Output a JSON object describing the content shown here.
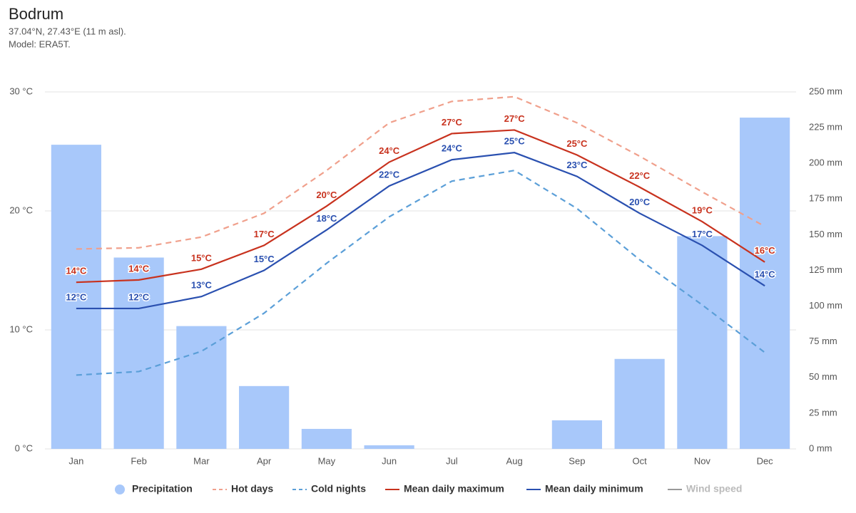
{
  "chart_data": {
    "type": "combo",
    "title": "Bodrum",
    "subtitle": [
      "37.04°N, 27.43°E (11 m asl).",
      "Model: ERA5T."
    ],
    "categories": [
      "Jan",
      "Feb",
      "Mar",
      "Apr",
      "May",
      "Jun",
      "Jul",
      "Aug",
      "Sep",
      "Oct",
      "Nov",
      "Dec"
    ],
    "ylim": [
      0,
      30
    ],
    "yticks": [
      {
        "value": 0,
        "label": "0 °C"
      },
      {
        "value": 10,
        "label": "10 °C"
      },
      {
        "value": 20,
        "label": "20 °C"
      },
      {
        "value": 30,
        "label": "30 °C"
      }
    ],
    "y2lim": [
      0,
      250
    ],
    "y2ticks": [
      {
        "value": 0,
        "label": "0 mm"
      },
      {
        "value": 25,
        "label": "25 mm"
      },
      {
        "value": 50,
        "label": "50 mm"
      },
      {
        "value": 75,
        "label": "75 mm"
      },
      {
        "value": 100,
        "label": "100 mm"
      },
      {
        "value": 125,
        "label": "125 mm"
      },
      {
        "value": 150,
        "label": "150 mm"
      },
      {
        "value": 175,
        "label": "175 mm"
      },
      {
        "value": 200,
        "label": "200 mm"
      },
      {
        "value": 225,
        "label": "225 mm"
      },
      {
        "value": 250,
        "label": "250 mm"
      }
    ],
    "grid": true,
    "legend": "bottom",
    "series": [
      {
        "name": "Precipitation",
        "type": "bar",
        "axis": "y2",
        "color": "#a8c8fa",
        "values": [
          213,
          134,
          86,
          44,
          14,
          2.5,
          0,
          0,
          20,
          63,
          149,
          232
        ]
      },
      {
        "name": "Hot days",
        "type": "line",
        "dash": true,
        "color": "#f0a08c",
        "values": [
          16.8,
          16.9,
          17.8,
          19.8,
          23.4,
          27.4,
          29.2,
          29.6,
          27.4,
          24.6,
          21.6,
          18.7
        ]
      },
      {
        "name": "Cold nights",
        "type": "line",
        "dash": true,
        "color": "#5b9fd8",
        "values": [
          6.2,
          6.5,
          8.2,
          11.4,
          15.6,
          19.5,
          22.5,
          23.4,
          20.2,
          15.9,
          12.1,
          8.1
        ]
      },
      {
        "name": "Mean daily maximum",
        "type": "line",
        "dash": false,
        "color": "#c8321e",
        "values": [
          14.0,
          14.2,
          15.1,
          17.1,
          20.4,
          24.1,
          26.5,
          26.8,
          24.7,
          22.0,
          19.1,
          15.7
        ],
        "value_labels": [
          "14°C",
          "14°C",
          "15°C",
          "17°C",
          "20°C",
          "24°C",
          "27°C",
          "27°C",
          "25°C",
          "22°C",
          "19°C",
          "16°C"
        ]
      },
      {
        "name": "Mean daily minimum",
        "type": "line",
        "dash": false,
        "color": "#2a50b0",
        "values": [
          11.8,
          11.8,
          12.8,
          15.0,
          18.4,
          22.1,
          24.3,
          24.9,
          22.9,
          19.8,
          17.1,
          13.7
        ],
        "value_labels": [
          "12°C",
          "12°C",
          "13°C",
          "15°C",
          "18°C",
          "22°C",
          "24°C",
          "25°C",
          "23°C",
          "20°C",
          "17°C",
          "14°C"
        ]
      },
      {
        "name": "Wind speed",
        "type": "line",
        "dash": false,
        "color": "#999999",
        "visible": false
      }
    ]
  }
}
